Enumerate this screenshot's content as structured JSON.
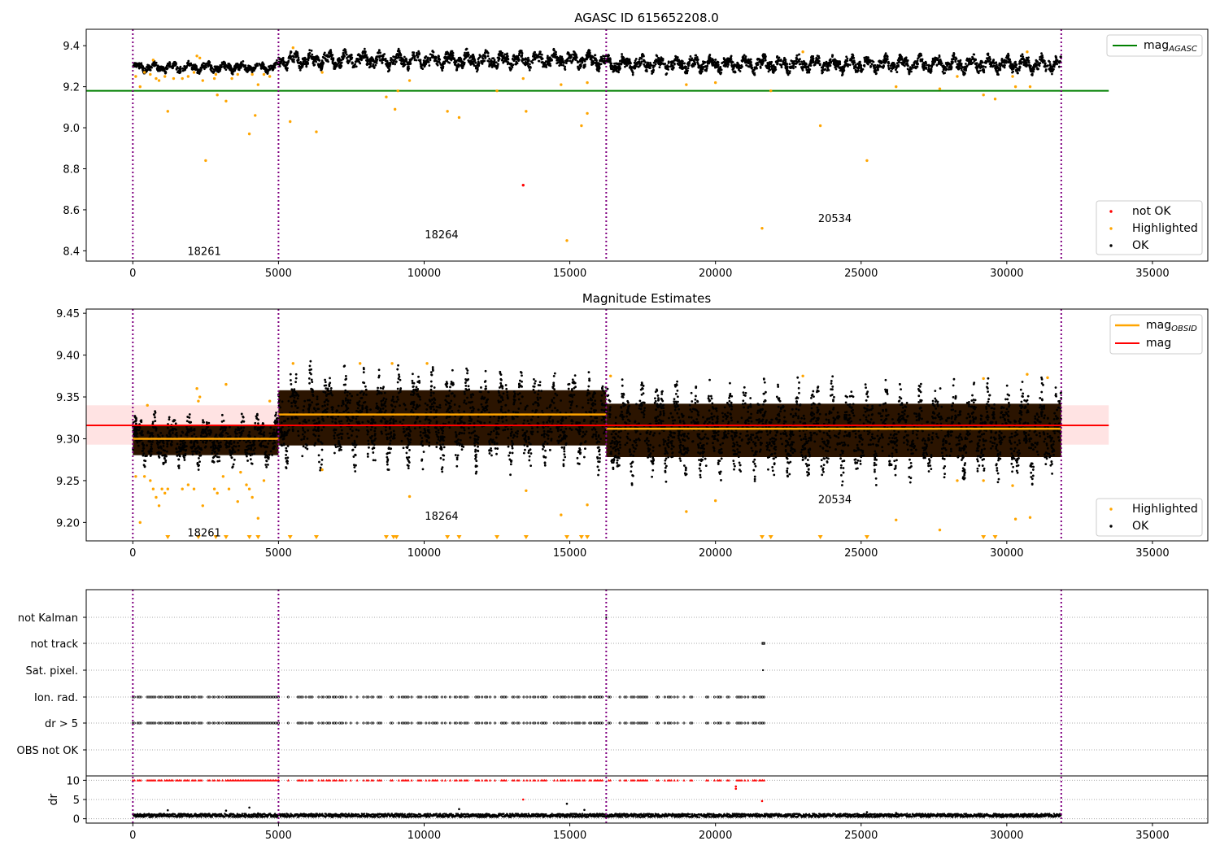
{
  "chart_data": [
    {
      "type": "scatter",
      "title": "AGASC ID 615652208.0",
      "xlim": [
        -1600,
        36900
      ],
      "ylim": [
        8.35,
        9.48
      ],
      "xticks": [
        0,
        5000,
        10000,
        15000,
        20000,
        25000,
        30000,
        35000
      ],
      "xtick_labels": [
        "0",
        "5000",
        "10000",
        "15000",
        "20000",
        "25000",
        "30000",
        "35000"
      ],
      "yticks": [
        8.4,
        8.6,
        8.8,
        9.0,
        9.2,
        9.4
      ],
      "ytick_labels": [
        "8.4",
        "8.6",
        "8.8",
        "9.0",
        "9.2",
        "9.4"
      ],
      "obs_boundaries": [
        0,
        5000,
        16250,
        31870
      ],
      "obs_labels": [
        {
          "text": "18261",
          "x": 2450,
          "y": 8.4
        },
        {
          "text": "18264",
          "x": 10600,
          "y": 8.48
        },
        {
          "text": "20534",
          "x": 24100,
          "y": 8.56
        }
      ],
      "reference_line": {
        "name": "mag$_{AGASC}$",
        "legend_main": "mag",
        "legend_sub": "AGASC",
        "value": 9.18,
        "x_range": [
          -1600,
          33500
        ],
        "color": "#008000"
      },
      "ok_band": [
        {
          "x_start": 0,
          "x_end": 5000,
          "center": 9.295,
          "amplitude": 0.03
        },
        {
          "x_start": 5000,
          "x_end": 16250,
          "center": 9.33,
          "amplitude": 0.05
        },
        {
          "x_start": 16250,
          "x_end": 31870,
          "center": 9.31,
          "amplitude": 0.048
        }
      ],
      "series": [
        {
          "name": "not OK",
          "color": "#ff0000",
          "points": [
            [
              13400,
              8.72
            ]
          ]
        },
        {
          "name": "Highlighted",
          "color": "#ffa500",
          "points": [
            [
              100,
              9.25
            ],
            [
              250,
              9.2
            ],
            [
              400,
              9.27
            ],
            [
              600,
              9.26
            ],
            [
              700,
              9.33
            ],
            [
              800,
              9.24
            ],
            [
              900,
              9.23
            ],
            [
              1100,
              9.25
            ],
            [
              1200,
              9.08
            ],
            [
              1400,
              9.24
            ],
            [
              1700,
              9.24
            ],
            [
              1900,
              9.25
            ],
            [
              2100,
              9.27
            ],
            [
              2200,
              9.35
            ],
            [
              2300,
              9.34
            ],
            [
              2400,
              9.23
            ],
            [
              2500,
              8.84
            ],
            [
              2800,
              9.24
            ],
            [
              2850,
              9.26
            ],
            [
              2900,
              9.16
            ],
            [
              3200,
              9.13
            ],
            [
              3400,
              9.24
            ],
            [
              3600,
              9.26
            ],
            [
              4000,
              8.97
            ],
            [
              4100,
              9.26
            ],
            [
              4200,
              9.06
            ],
            [
              4300,
              9.21
            ],
            [
              4500,
              9.26
            ],
            [
              4700,
              9.25
            ],
            [
              5400,
              9.03
            ],
            [
              5500,
              9.39
            ],
            [
              6300,
              8.98
            ],
            [
              6500,
              9.27
            ],
            [
              8700,
              9.15
            ],
            [
              9000,
              9.09
            ],
            [
              9100,
              9.18
            ],
            [
              9500,
              9.23
            ],
            [
              10800,
              9.08
            ],
            [
              11200,
              9.05
            ],
            [
              12500,
              9.18
            ],
            [
              13400,
              9.24
            ],
            [
              13500,
              9.08
            ],
            [
              14700,
              9.21
            ],
            [
              14900,
              8.45
            ],
            [
              15400,
              9.01
            ],
            [
              15600,
              9.22
            ],
            [
              15600,
              9.07
            ],
            [
              19000,
              9.21
            ],
            [
              20000,
              9.22
            ],
            [
              21600,
              8.51
            ],
            [
              21900,
              9.18
            ],
            [
              23000,
              9.37
            ],
            [
              23600,
              9.01
            ],
            [
              25200,
              8.84
            ],
            [
              26200,
              9.2
            ],
            [
              27700,
              9.19
            ],
            [
              28300,
              9.25
            ],
            [
              29200,
              9.16
            ],
            [
              29600,
              9.14
            ],
            [
              30200,
              9.25
            ],
            [
              30300,
              9.2
            ],
            [
              30700,
              9.37
            ],
            [
              30800,
              9.2
            ]
          ]
        },
        {
          "name": "OK",
          "color": "#000000",
          "points": []
        }
      ],
      "legends": {
        "top_right": [
          "mag$_{AGASC}$"
        ],
        "bottom_right": [
          "not OK",
          "Highlighted",
          "OK"
        ]
      }
    },
    {
      "type": "scatter",
      "title": "Magnitude Estimates",
      "xlim": [
        -1600,
        36900
      ],
      "ylim": [
        9.178,
        9.455
      ],
      "xticks": [
        0,
        5000,
        10000,
        15000,
        20000,
        25000,
        30000,
        35000
      ],
      "xtick_labels": [
        "0",
        "5000",
        "10000",
        "15000",
        "20000",
        "25000",
        "30000",
        "35000"
      ],
      "yticks": [
        9.2,
        9.25,
        9.3,
        9.35,
        9.4,
        9.45
      ],
      "ytick_labels": [
        "9.20",
        "9.25",
        "9.30",
        "9.35",
        "9.40",
        "9.45"
      ],
      "obs_boundaries": [
        0,
        5000,
        16250,
        31870
      ],
      "obs_labels": [
        {
          "text": "18261",
          "x": 2450,
          "y": 9.188
        },
        {
          "text": "18264",
          "x": 10600,
          "y": 9.208
        },
        {
          "text": "20534",
          "x": 24100,
          "y": 9.228
        }
      ],
      "mag_line": {
        "name": "mag",
        "value": 9.316,
        "band": [
          9.293,
          9.34
        ],
        "x_range": [
          -1600,
          33500
        ],
        "color": "#ff0000"
      },
      "mag_obsid": {
        "name": "mag$_{OBSID}$",
        "legend_main": "mag",
        "legend_sub": "OBSID",
        "color": "#ffa500",
        "segments": [
          {
            "x_start": 0,
            "x_end": 5000,
            "value": 9.3
          },
          {
            "x_start": 5000,
            "x_end": 16250,
            "value": 9.329
          },
          {
            "x_start": 16250,
            "x_end": 31870,
            "value": 9.312
          }
        ]
      },
      "ok_band": [
        {
          "x_start": 0,
          "x_end": 5000,
          "center": 9.298,
          "amplitude": 0.032
        },
        {
          "x_start": 5000,
          "x_end": 16250,
          "center": 9.325,
          "amplitude": 0.06
        },
        {
          "x_start": 16250,
          "x_end": 31870,
          "center": 9.31,
          "amplitude": 0.058
        }
      ],
      "series": [
        {
          "name": "Highlighted",
          "color": "#ffa500",
          "points": [
            [
              100,
              9.255
            ],
            [
              250,
              9.2
            ],
            [
              400,
              9.255
            ],
            [
              500,
              9.34
            ],
            [
              600,
              9.25
            ],
            [
              700,
              9.24
            ],
            [
              800,
              9.23
            ],
            [
              900,
              9.22
            ],
            [
              1000,
              9.24
            ],
            [
              1100,
              9.235
            ],
            [
              1200,
              9.24
            ],
            [
              1700,
              9.24
            ],
            [
              1900,
              9.245
            ],
            [
              2100,
              9.24
            ],
            [
              2200,
              9.36
            ],
            [
              2250,
              9.345
            ],
            [
              2300,
              9.35
            ],
            [
              2400,
              9.22
            ],
            [
              2800,
              9.24
            ],
            [
              2900,
              9.235
            ],
            [
              3100,
              9.255
            ],
            [
              3200,
              9.365
            ],
            [
              3300,
              9.24
            ],
            [
              3600,
              9.225
            ],
            [
              3700,
              9.26
            ],
            [
              3900,
              9.245
            ],
            [
              4000,
              9.24
            ],
            [
              4100,
              9.23
            ],
            [
              4300,
              9.205
            ],
            [
              4500,
              9.25
            ],
            [
              4700,
              9.345
            ],
            [
              5500,
              9.39
            ],
            [
              6500,
              9.263
            ],
            [
              7800,
              9.39
            ],
            [
              8900,
              9.39
            ],
            [
              9500,
              9.231
            ],
            [
              10100,
              9.39
            ],
            [
              13500,
              9.238
            ],
            [
              14700,
              9.209
            ],
            [
              15600,
              9.221
            ],
            [
              16400,
              9.375
            ],
            [
              19000,
              9.213
            ],
            [
              20000,
              9.226
            ],
            [
              23000,
              9.375
            ],
            [
              26200,
              9.203
            ],
            [
              27700,
              9.191
            ],
            [
              28300,
              9.25
            ],
            [
              29200,
              9.25
            ],
            [
              29200,
              9.372
            ],
            [
              30200,
              9.244
            ],
            [
              30300,
              9.204
            ],
            [
              30700,
              9.377
            ],
            [
              30800,
              9.206
            ],
            [
              31400,
              9.373
            ]
          ]
        },
        {
          "name": "Highlighted (below range)",
          "color": "#ffa500",
          "marker": "triangle-down",
          "points": [
            [
              1200,
              9.18
            ],
            [
              2250,
              9.18
            ],
            [
              2850,
              9.18
            ],
            [
              3200,
              9.18
            ],
            [
              4000,
              9.18
            ],
            [
              4300,
              9.18
            ],
            [
              5400,
              9.18
            ],
            [
              6300,
              9.18
            ],
            [
              8700,
              9.18
            ],
            [
              8950,
              9.18
            ],
            [
              9050,
              9.18
            ],
            [
              10800,
              9.18
            ],
            [
              11200,
              9.18
            ],
            [
              12500,
              9.18
            ],
            [
              13500,
              9.18
            ],
            [
              14900,
              9.18
            ],
            [
              15400,
              9.18
            ],
            [
              15600,
              9.18
            ],
            [
              21600,
              9.18
            ],
            [
              21900,
              9.18
            ],
            [
              23600,
              9.18
            ],
            [
              25200,
              9.18
            ],
            [
              29200,
              9.18
            ],
            [
              29600,
              9.18
            ]
          ]
        },
        {
          "name": "OK",
          "color": "#000000",
          "points": []
        }
      ],
      "legends": {
        "top_right": [
          "mag$_{OBSID}$",
          "mag"
        ],
        "bottom_right": [
          "Highlighted",
          "OK"
        ]
      }
    },
    {
      "type": "scatter",
      "title": "",
      "xlim": [
        -1600,
        36900
      ],
      "xticks": [
        0,
        5000,
        10000,
        15000,
        20000,
        25000,
        30000,
        35000
      ],
      "xtick_labels": [
        "0",
        "5000",
        "10000",
        "15000",
        "20000",
        "25000",
        "30000",
        "35000"
      ],
      "obs_boundaries": [
        0,
        5000,
        16250,
        31870
      ],
      "flag_rows": [
        "not Kalman",
        "not track",
        "Sat. pixel.",
        "Ion. rad.",
        "dr > 5",
        "OBS not OK"
      ],
      "flag_points": {
        "not Kalman": [
          16250
        ],
        "not track": [
          21630,
          21660
        ],
        "Sat. pixel.": [
          21630
        ],
        "Ion. rad.": "x in [0, 21700] sparse, dense over [3200, 5000]",
        "dr > 5": "x in [0, 21700] sparse, dense over [3200, 5000]",
        "OBS not OK": []
      },
      "dr_panel": {
        "ylabel": "dr",
        "ylim": [
          -0.5,
          10.5
        ],
        "yticks": [
          0,
          5,
          10
        ],
        "ytick_labels": [
          "0",
          "5",
          "10"
        ],
        "clipped_at": 10,
        "outliers": [
          [
            1200,
            2.2
          ],
          [
            3200,
            2.1
          ],
          [
            4000,
            2.9
          ],
          [
            4300,
            1.4
          ],
          [
            11200,
            2.5
          ],
          [
            13400,
            5.0
          ],
          [
            14900,
            3.9
          ],
          [
            15500,
            2.3
          ],
          [
            20700,
            7.8
          ],
          [
            20700,
            8.4
          ],
          [
            21600,
            4.6
          ],
          [
            25200,
            1.7
          ],
          [
            26200,
            1.5
          ]
        ]
      }
    }
  ]
}
